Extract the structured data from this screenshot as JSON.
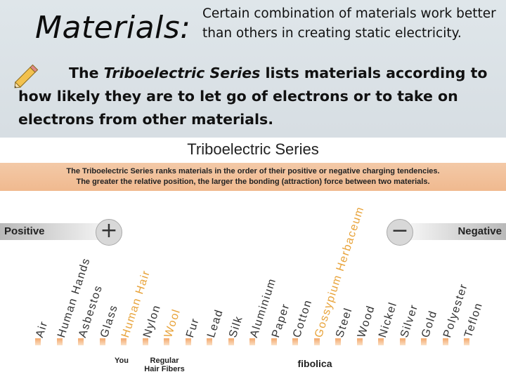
{
  "slide": {
    "title": "Materials:",
    "note": "Certain combination of materials work better than others in creating static electricity.",
    "body_before": "The ",
    "body_em": "Triboelectric Series",
    "body_after": " lists materials according to how likely they are to let go of electrons or to take on electrons from other materials."
  },
  "figure": {
    "title": "Triboelectric Series",
    "description_line1": "The Triboelectric Series ranks materials in the order of their positive or negative charging tendencies.",
    "description_line2": "The greater the relative position, the larger the bonding (attraction) force between two materials.",
    "positive_label": "Positive",
    "negative_label": "Negative",
    "plus_sign": "+",
    "minus_sign": "−",
    "materials": [
      "Air",
      "Human Hands",
      "Asbestos",
      "Glass",
      "Human Hair",
      "Nylon",
      "Wool",
      "Fur",
      "Lead",
      "Silk",
      "Aluminium",
      "Paper",
      "Cotton",
      "Gossypium Herbaceum",
      "Steel",
      "Wood",
      "Nickel",
      "Silver",
      "Gold",
      "Polyester",
      "Teflon"
    ],
    "footer_you": "You",
    "footer_hair_line1": "Regular",
    "footer_hair_line2": "Hair Fibers",
    "footer_brand": "fibolica"
  },
  "colors": {
    "highlight": "#e8a33a",
    "band": "#f0b98f"
  },
  "icons": [
    "pencil-icon",
    "plus-icon",
    "minus-icon"
  ]
}
